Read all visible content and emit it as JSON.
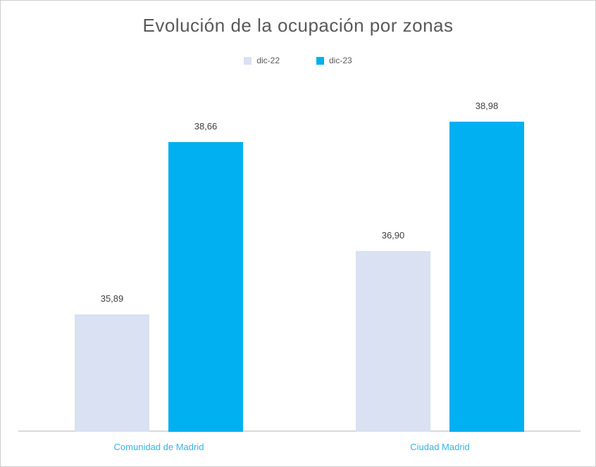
{
  "chart_data": {
    "type": "bar",
    "title": "Evolución de la ocupación por zonas",
    "categories": [
      "Comunidad de Madrid",
      "Ciudad Madrid"
    ],
    "series": [
      {
        "name": "dic-22",
        "color": "#D9E1F2",
        "values": [
          35.89,
          36.9
        ],
        "labels": [
          "35,89",
          "36,90"
        ]
      },
      {
        "name": "dic-23",
        "color": "#00B0F0",
        "values": [
          38.66,
          38.98
        ],
        "labels": [
          "38,66",
          "38,98"
        ]
      }
    ],
    "ylim": [
      34,
      40
    ],
    "xlabel": "",
    "ylabel": "",
    "grid": false,
    "legend_position": "top",
    "colors": {
      "title_text": "#595959",
      "legend_text": "#595959",
      "value_label_text": "#404040",
      "category_label_text": "#36B4E8",
      "axis_line": "#D9D9D9",
      "frame_border": "#CFCFCF",
      "background": "#FFFFFF"
    }
  }
}
